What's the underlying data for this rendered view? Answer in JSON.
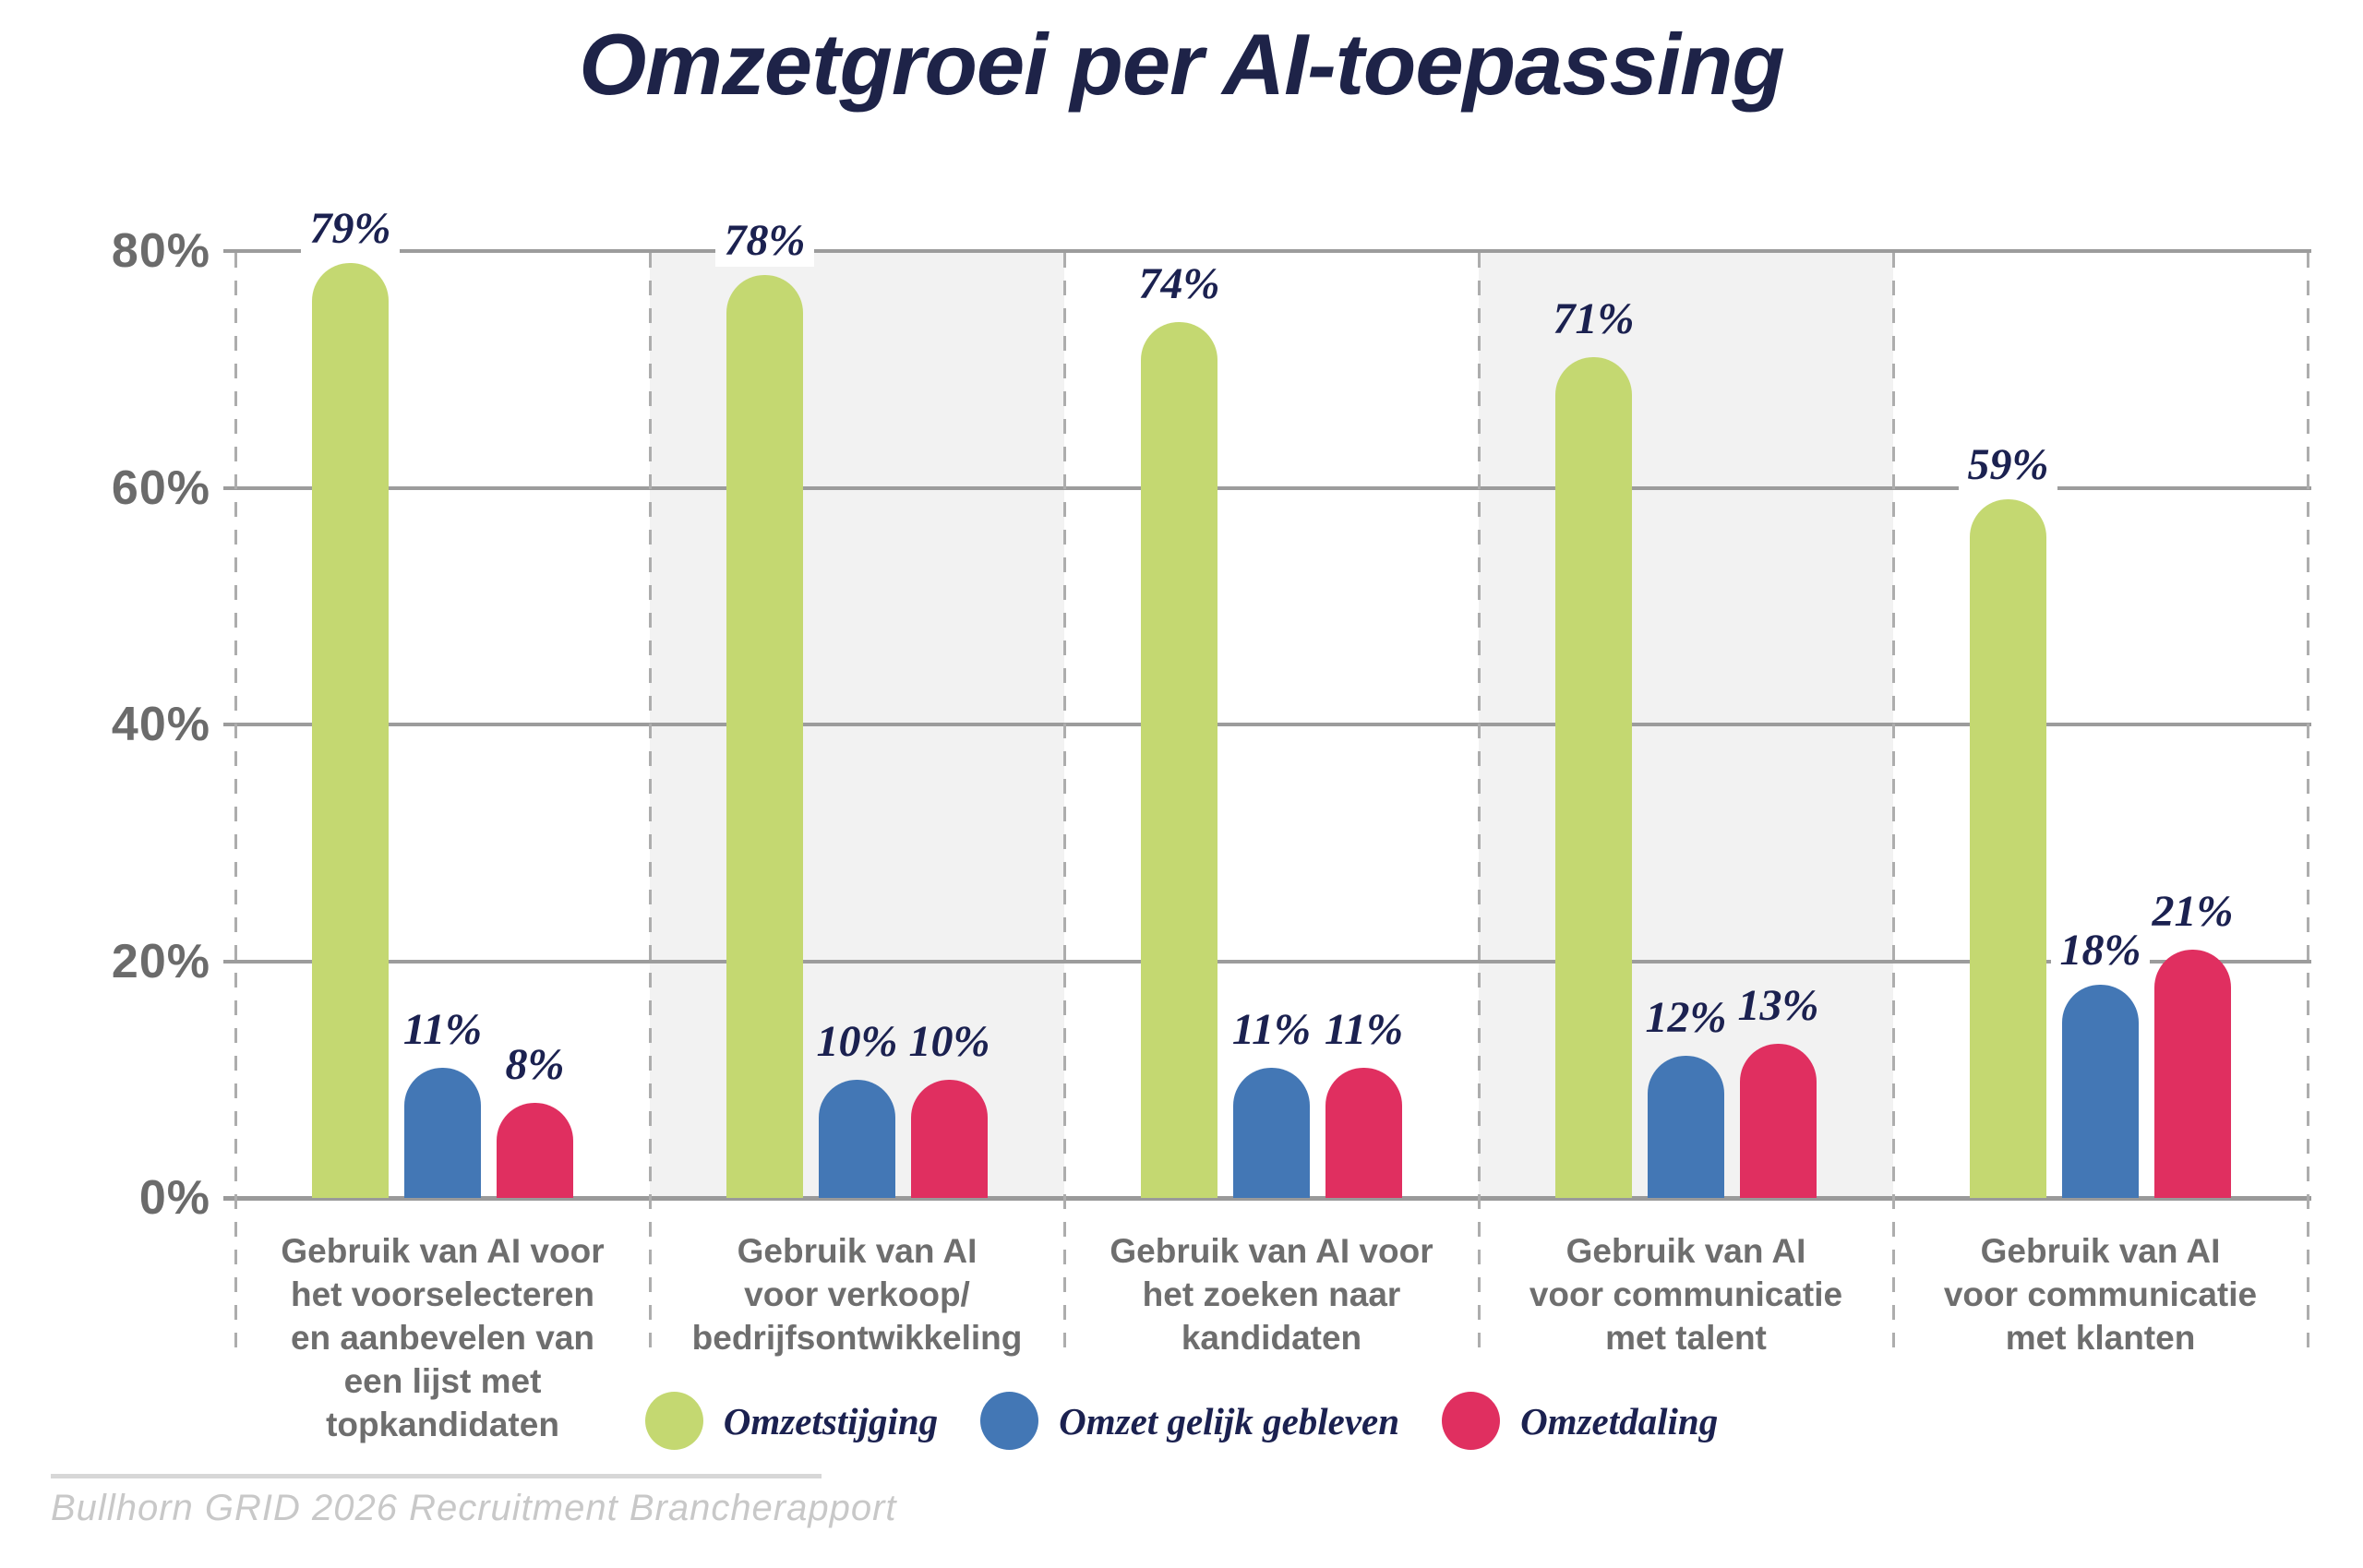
{
  "title": "Omzetgroei per AI-toepassing",
  "source": "Bullhorn GRID 2026 Recruitment Brancherapport",
  "colors": {
    "title_navy": "#1e2348",
    "label_navy": "#1b2150",
    "axis_gray": "#6b6b6b",
    "category_gray": "#6e6e6e",
    "gridline_gray": "#9c9c9c",
    "band_gray": "#f2f2f2",
    "series_green": "#c4d871",
    "series_blue": "#4377b5",
    "series_pink": "#e02f60"
  },
  "chart_data": {
    "type": "bar",
    "title": "Omzetgroei per AI-toepassing",
    "xlabel": "",
    "ylabel": "",
    "ylim": [
      0,
      80
    ],
    "grid": true,
    "legend_position": "bottom",
    "y_ticks": [
      {
        "value": 0,
        "label": "0%"
      },
      {
        "value": 20,
        "label": "20%"
      },
      {
        "value": 40,
        "label": "40%"
      },
      {
        "value": 60,
        "label": "60%"
      },
      {
        "value": 80,
        "label": "80%"
      }
    ],
    "categories": [
      {
        "label": "Gebruik van AI voor het voorselecteren en aanbevelen van een lijst met topkandidaten",
        "lines": [
          "Gebruik van AI voor",
          "het voorselecteren",
          "en aanbevelen van",
          "een lijst met",
          "topkandidaten"
        ],
        "shaded": false
      },
      {
        "label": "Gebruik van AI voor verkoop/bedrijfsontwikkeling",
        "lines": [
          "Gebruik van AI",
          "voor verkoop/",
          "bedrijfsontwikkeling"
        ],
        "shaded": true
      },
      {
        "label": "Gebruik van AI voor het zoeken naar kandidaten",
        "lines": [
          "Gebruik van AI voor",
          "het zoeken naar",
          "kandidaten"
        ],
        "shaded": false
      },
      {
        "label": "Gebruik van AI voor communicatie met talent",
        "lines": [
          "Gebruik van AI",
          "voor communicatie",
          "met talent"
        ],
        "shaded": true
      },
      {
        "label": "Gebruik van AI voor communicatie met klanten",
        "lines": [
          "Gebruik van AI",
          "voor communicatie",
          "met klanten"
        ],
        "shaded": false
      }
    ],
    "series": [
      {
        "name": "Omzetstijging",
        "key": "omzetstijging",
        "color": "#c4d871",
        "values": [
          79,
          78,
          74,
          71,
          59
        ]
      },
      {
        "name": "Omzet gelijk gebleven",
        "key": "omzet-gelijk-gebleven",
        "color": "#4377b5",
        "values": [
          11,
          10,
          11,
          12,
          18
        ]
      },
      {
        "name": "Omzetdaling",
        "key": "omzetdaling",
        "color": "#e02f60",
        "values": [
          8,
          10,
          11,
          13,
          21
        ]
      }
    ],
    "data_label_format": "{value}%"
  }
}
